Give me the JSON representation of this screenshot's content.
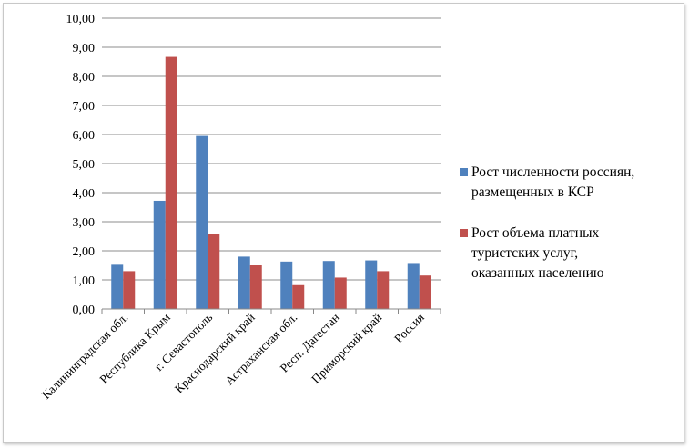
{
  "chart_data": {
    "type": "bar",
    "title": "",
    "xlabel": "",
    "ylabel": "",
    "ylim": [
      0,
      10
    ],
    "yticks": [
      "0,00",
      "1,00",
      "2,00",
      "3,00",
      "4,00",
      "5,00",
      "6,00",
      "7,00",
      "8,00",
      "9,00",
      "10,00"
    ],
    "grid": true,
    "legend_position": "right",
    "categories": [
      "Калининградская обл.",
      "Республика Крым",
      "г. Севастополь",
      "Краснодарский край",
      "Астраханская обл.",
      "Респ. Дагестан",
      "Приморский край",
      "Россия"
    ],
    "series": [
      {
        "name_lines": [
          "Рост численности россиян,",
          "размещенных в КСР"
        ],
        "color": "#4f81bd",
        "values": [
          1.52,
          3.72,
          5.95,
          1.8,
          1.63,
          1.65,
          1.67,
          1.58
        ]
      },
      {
        "name_lines": [
          "Рост объема платных",
          "туристских услуг,",
          "оказанных населению"
        ],
        "color": "#c0504d",
        "values": [
          1.3,
          8.67,
          2.58,
          1.5,
          0.82,
          1.08,
          1.3,
          1.15
        ]
      }
    ]
  }
}
